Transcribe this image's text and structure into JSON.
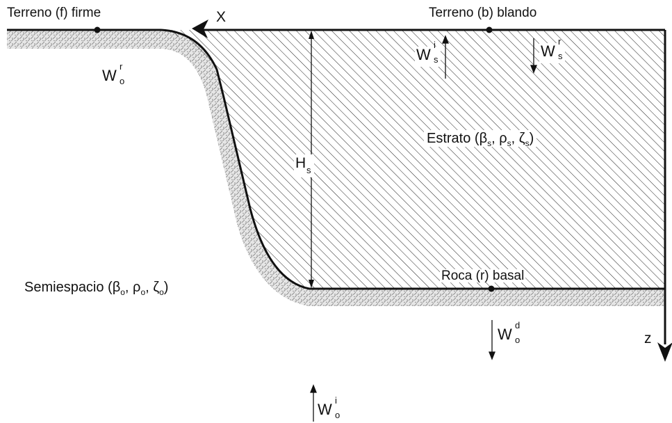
{
  "labels": {
    "firm_ground": "Terreno (f) firme",
    "soft_ground": "Terreno (b) blando",
    "bedrock": "Roca (r) basal",
    "x_axis": "X",
    "z_axis": "z"
  },
  "stratum": {
    "prefix": "Estrato (",
    "beta": "β",
    "rho": "ρ",
    "zeta": "ζ",
    "sub": "s",
    "sep": ", ",
    "suffix": ")"
  },
  "halfspace": {
    "prefix": "Semiespacio (",
    "beta": "β",
    "rho": "ρ",
    "zeta": "ζ",
    "sub": "o",
    "sep": ", ",
    "suffix": ")"
  },
  "thickness": {
    "base": "H",
    "sub": "s"
  },
  "waves": {
    "wo_r": {
      "base": "W",
      "sup": "r",
      "sub": "o"
    },
    "ws_i": {
      "base": "W",
      "sup": "i",
      "sub": "s"
    },
    "ws_r": {
      "base": "W",
      "sup": "r",
      "sub": "s"
    },
    "wo_d": {
      "base": "W",
      "sup": "d",
      "sub": "o"
    },
    "wo_i": {
      "base": "W",
      "sup": "i",
      "sub": "o"
    }
  }
}
